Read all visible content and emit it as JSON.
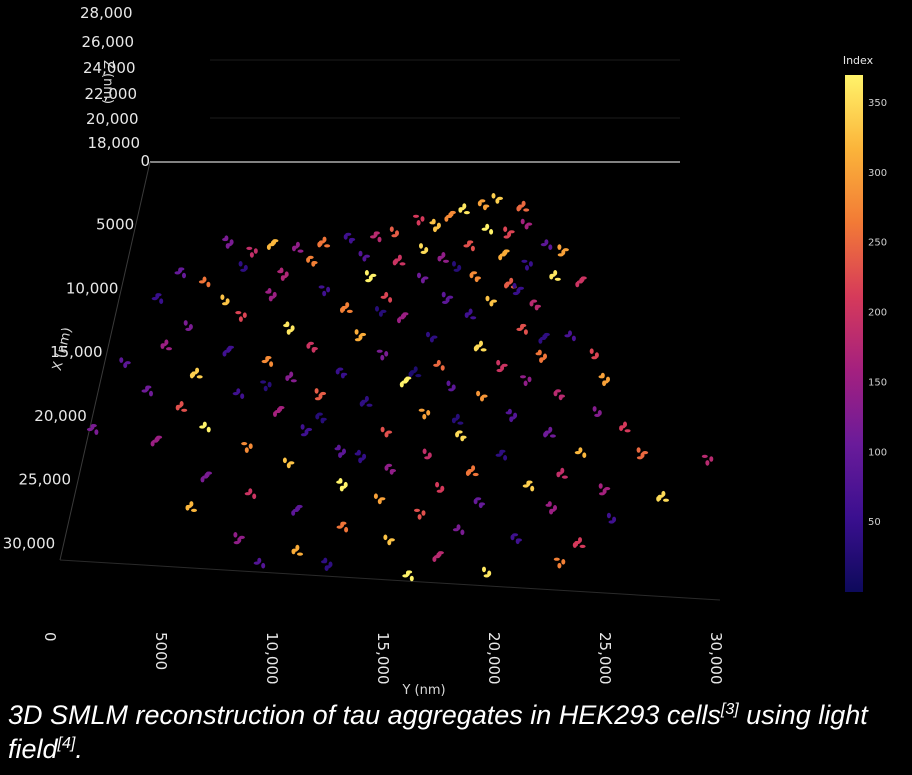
{
  "chart_data": {
    "type": "scatter",
    "title": "",
    "xlabel": "Y (nm)",
    "ylabel": "X (nm)",
    "zlabel": "Z (nm)",
    "x_ticks": [
      "0",
      "5000",
      "10,000",
      "15,000",
      "20,000",
      "25,000",
      "30,000"
    ],
    "y_ticks": [
      "0",
      "5000",
      "10,000",
      "15,000",
      "20,000",
      "25,000",
      "30,000"
    ],
    "z_ticks": [
      "18,000",
      "20,000",
      "22,000",
      "24,000",
      "26,000",
      "28,000"
    ],
    "xlim": [
      0,
      32000
    ],
    "ylim": [
      0,
      31000
    ],
    "zlim": [
      18000,
      28000
    ],
    "colorbar": {
      "title": "Index",
      "ticks": [
        "50",
        "100",
        "150",
        "200",
        "250",
        "300",
        "350"
      ],
      "range": [
        0,
        370
      ],
      "colormap": "plasma-like",
      "stops": [
        "#0d0a5b",
        "#3a0f8f",
        "#6a1b9a",
        "#a4207f",
        "#d63a5a",
        "#f27a36",
        "#fbb43a",
        "#fff36a"
      ]
    },
    "points": [
      [
        21000,
        2000,
        340
      ],
      [
        20200,
        2400,
        300
      ],
      [
        22500,
        2600,
        250
      ],
      [
        19000,
        2800,
        360
      ],
      [
        18200,
        3300,
        280
      ],
      [
        16500,
        3500,
        210
      ],
      [
        17500,
        4000,
        330
      ],
      [
        15000,
        4500,
        240
      ],
      [
        14000,
        4800,
        180
      ],
      [
        20500,
        4200,
        370
      ],
      [
        21800,
        4600,
        220
      ],
      [
        22800,
        4000,
        160
      ],
      [
        12500,
        5000,
        60
      ],
      [
        11000,
        5400,
        260
      ],
      [
        9500,
        5800,
        140
      ],
      [
        8000,
        5500,
        320
      ],
      [
        7000,
        6000,
        190
      ],
      [
        5500,
        5300,
        120
      ],
      [
        16800,
        5800,
        350
      ],
      [
        19500,
        5500,
        230
      ],
      [
        24000,
        5400,
        90
      ],
      [
        25000,
        6000,
        300
      ],
      [
        13500,
        6500,
        80
      ],
      [
        10500,
        6800,
        270
      ],
      [
        15500,
        6800,
        200
      ],
      [
        18000,
        6600,
        140
      ],
      [
        21500,
        6300,
        310
      ],
      [
        23000,
        7000,
        50
      ],
      [
        9000,
        7800,
        170
      ],
      [
        6500,
        7200,
        40
      ],
      [
        3000,
        7600,
        100
      ],
      [
        4500,
        8300,
        260
      ],
      [
        14000,
        8000,
        370
      ],
      [
        17000,
        8200,
        110
      ],
      [
        20000,
        8000,
        280
      ],
      [
        22000,
        8600,
        240
      ],
      [
        24500,
        8000,
        360
      ],
      [
        26000,
        8400,
        200
      ],
      [
        11500,
        9000,
        60
      ],
      [
        8500,
        9400,
        150
      ],
      [
        5800,
        9800,
        330
      ],
      [
        2000,
        9600,
        50
      ],
      [
        15000,
        9500,
        220
      ],
      [
        18500,
        9700,
        90
      ],
      [
        21000,
        10000,
        330
      ],
      [
        23500,
        10200,
        180
      ],
      [
        12800,
        10500,
        270
      ],
      [
        19800,
        11000,
        60
      ],
      [
        16000,
        11200,
        150
      ],
      [
        7000,
        11000,
        220
      ],
      [
        9800,
        12000,
        360
      ],
      [
        4000,
        11800,
        120
      ],
      [
        22800,
        12000,
        230
      ],
      [
        25500,
        12500,
        70
      ],
      [
        13800,
        12600,
        310
      ],
      [
        17800,
        12800,
        40
      ],
      [
        11200,
        13500,
        200
      ],
      [
        20500,
        13500,
        350
      ],
      [
        3000,
        13400,
        150
      ],
      [
        6500,
        13800,
        60
      ],
      [
        15200,
        14000,
        120
      ],
      [
        24000,
        14200,
        260
      ],
      [
        26800,
        14000,
        220
      ],
      [
        8800,
        14500,
        280
      ],
      [
        18300,
        14800,
        250
      ],
      [
        21800,
        15000,
        200
      ],
      [
        1000,
        14800,
        90
      ],
      [
        13000,
        15500,
        50
      ],
      [
        5000,
        15600,
        340
      ],
      [
        10200,
        15900,
        130
      ],
      [
        16500,
        16200,
        370
      ],
      [
        23200,
        16000,
        140
      ],
      [
        27500,
        16000,
        300
      ],
      [
        19000,
        16500,
        90
      ],
      [
        2500,
        16800,
        110
      ],
      [
        7500,
        17000,
        60
      ],
      [
        12000,
        17200,
        240
      ],
      [
        20800,
        17400,
        290
      ],
      [
        25000,
        17200,
        180
      ],
      [
        14500,
        17800,
        40
      ],
      [
        4500,
        18200,
        230
      ],
      [
        9800,
        18500,
        160
      ],
      [
        17800,
        18600,
        300
      ],
      [
        22500,
        18800,
        80
      ],
      [
        27000,
        18500,
        130
      ],
      [
        0,
        19800,
        120
      ],
      [
        6000,
        19600,
        370
      ],
      [
        11500,
        20000,
        60
      ],
      [
        15800,
        20200,
        230
      ],
      [
        19800,
        20400,
        350
      ],
      [
        24500,
        20200,
        110
      ],
      [
        28500,
        19800,
        210
      ],
      [
        3500,
        20800,
        150
      ],
      [
        8500,
        21200,
        280
      ],
      [
        13500,
        21600,
        90
      ],
      [
        18000,
        21800,
        190
      ],
      [
        22000,
        21800,
        40
      ],
      [
        26200,
        21600,
        320
      ],
      [
        29500,
        21800,
        250
      ],
      [
        10800,
        22600,
        330
      ],
      [
        16200,
        23000,
        140
      ],
      [
        20500,
        23200,
        260
      ],
      [
        25200,
        23400,
        190
      ],
      [
        6500,
        23600,
        120
      ],
      [
        33000,
        22200,
        180
      ],
      [
        13800,
        24200,
        370
      ],
      [
        18800,
        24400,
        210
      ],
      [
        23500,
        24200,
        340
      ],
      [
        9000,
        24800,
        200
      ],
      [
        27500,
        24600,
        160
      ],
      [
        15800,
        25400,
        300
      ],
      [
        21000,
        25600,
        100
      ],
      [
        30500,
        25200,
        350
      ],
      [
        6000,
        26000,
        320
      ],
      [
        11500,
        26200,
        90
      ],
      [
        18000,
        26400,
        230
      ],
      [
        24800,
        26000,
        150
      ],
      [
        27800,
        26800,
        60
      ],
      [
        14000,
        27400,
        260
      ],
      [
        20000,
        27600,
        120
      ],
      [
        8800,
        28400,
        140
      ],
      [
        16500,
        28600,
        330
      ],
      [
        23000,
        28400,
        60
      ],
      [
        26200,
        28800,
        210
      ],
      [
        11800,
        29400,
        310
      ],
      [
        19000,
        29800,
        180
      ],
      [
        25300,
        30200,
        270
      ],
      [
        13500,
        30400,
        40
      ],
      [
        21500,
        31000,
        360
      ],
      [
        17600,
        31200,
        370
      ],
      [
        10000,
        30200,
        80
      ],
      [
        22500,
        9000,
        50
      ],
      [
        14800,
        10800,
        30
      ],
      [
        12200,
        19000,
        30
      ],
      [
        17000,
        15500,
        20
      ],
      [
        19500,
        19200,
        30
      ],
      [
        24000,
        12800,
        40
      ],
      [
        9000,
        16400,
        30
      ],
      [
        14600,
        22000,
        45
      ],
      [
        18800,
        7200,
        30
      ]
    ]
  },
  "caption": {
    "text": "3D SMLM reconstruction of tau aggregates in HEK293 cells",
    "ref1": "[3]",
    "middle": " using light field",
    "ref2": "[4]",
    "end": "."
  }
}
